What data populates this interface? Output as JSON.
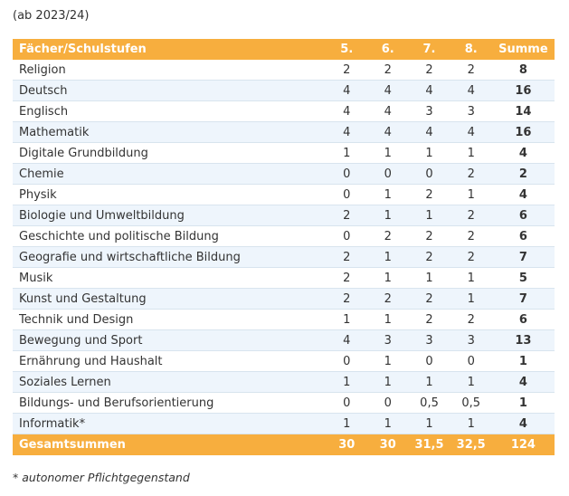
{
  "subtitle": "(ab 2023/24)",
  "table": {
    "headers": [
      "Fächer/Schulstufen",
      "5.",
      "6.",
      "7.",
      "8.",
      "Summe"
    ],
    "rows": [
      [
        "Religion",
        "2",
        "2",
        "2",
        "2",
        "8"
      ],
      [
        "Deutsch",
        "4",
        "4",
        "4",
        "4",
        "16"
      ],
      [
        "Englisch",
        "4",
        "4",
        "3",
        "3",
        "14"
      ],
      [
        "Mathematik",
        "4",
        "4",
        "4",
        "4",
        "16"
      ],
      [
        "Digitale Grundbildung",
        "1",
        "1",
        "1",
        "1",
        "4"
      ],
      [
        "Chemie",
        "0",
        "0",
        "0",
        "2",
        "2"
      ],
      [
        "Physik",
        "0",
        "1",
        "2",
        "1",
        "4"
      ],
      [
        "Biologie und Umweltbildung",
        "2",
        "1",
        "1",
        "2",
        "6"
      ],
      [
        "Geschichte und politische Bildung",
        "0",
        "2",
        "2",
        "2",
        "6"
      ],
      [
        "Geografie und wirtschaftliche Bildung",
        "2",
        "1",
        "2",
        "2",
        "7"
      ],
      [
        "Musik",
        "2",
        "1",
        "1",
        "1",
        "5"
      ],
      [
        "Kunst und Gestaltung",
        "2",
        "2",
        "2",
        "1",
        "7"
      ],
      [
        "Technik und Design",
        "1",
        "1",
        "2",
        "2",
        "6"
      ],
      [
        "Bewegung und Sport",
        "4",
        "3",
        "3",
        "3",
        "13"
      ],
      [
        "Ernährung und Haushalt",
        "0",
        "1",
        "0",
        "0",
        "1"
      ],
      [
        "Soziales Lernen",
        "1",
        "1",
        "1",
        "1",
        "4"
      ],
      [
        "Bildungs- und Berufsorientierung",
        "0",
        "0",
        "0,5",
        "0,5",
        "1"
      ],
      [
        "Informatik*",
        "1",
        "1",
        "1",
        "1",
        "4"
      ]
    ],
    "totals": [
      "Gesamtsummen",
      "30",
      "30",
      "31,5",
      "32,5",
      "124"
    ]
  },
  "footnote": "* autonomer Pflichtgegenstand",
  "colors": {
    "header_bg": "#f7ae3e",
    "stripe_bg": "#eef5fc",
    "row_border": "#d8e4ee"
  }
}
